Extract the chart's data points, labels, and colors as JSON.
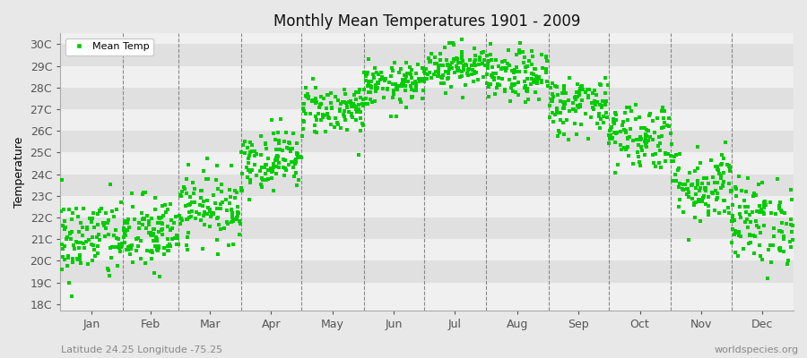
{
  "title": "Monthly Mean Temperatures 1901 - 2009",
  "ylabel": "Temperature",
  "xlabel_labels": [
    "Jan",
    "Feb",
    "Mar",
    "Apr",
    "May",
    "Jun",
    "Jul",
    "Aug",
    "Sep",
    "Oct",
    "Nov",
    "Dec"
  ],
  "ytick_labels": [
    "18C",
    "19C",
    "20C",
    "21C",
    "22C",
    "23C",
    "24C",
    "25C",
    "26C",
    "27C",
    "28C",
    "29C",
    "30C"
  ],
  "ytick_values": [
    18,
    19,
    20,
    21,
    22,
    23,
    24,
    25,
    26,
    27,
    28,
    29,
    30
  ],
  "ylim": [
    17.7,
    30.5
  ],
  "dot_color": "#00cc00",
  "dot_size": 5,
  "background_color": "#e8e8e8",
  "band_color_light": "#f0f0f0",
  "band_color_dark": "#e0e0e0",
  "dashed_line_color": "#888888",
  "subtitle": "Latitude 24.25 Longitude -75.25",
  "watermark": "worldspecies.org",
  "legend_label": "Mean Temp",
  "num_years": 109,
  "monthly_means": [
    21.0,
    21.2,
    22.5,
    24.7,
    27.0,
    28.1,
    29.0,
    28.5,
    27.2,
    25.8,
    23.5,
    21.8
  ],
  "monthly_stds": [
    1.0,
    0.9,
    0.8,
    0.7,
    0.6,
    0.5,
    0.5,
    0.6,
    0.7,
    0.8,
    0.9,
    1.0
  ],
  "seed": 42,
  "days_in_months": [
    31,
    28,
    31,
    30,
    31,
    30,
    31,
    31,
    30,
    31,
    30,
    31
  ]
}
